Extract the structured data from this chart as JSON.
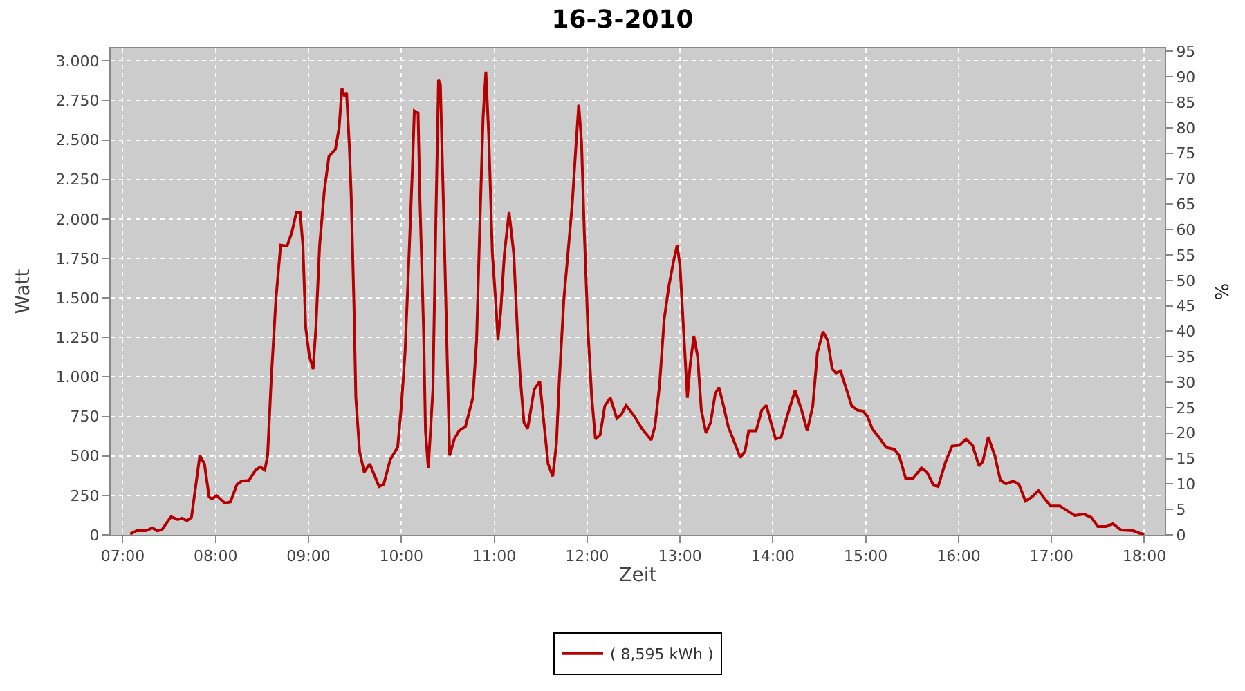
{
  "chart_data": {
    "type": "line",
    "title": "16-3-2010",
    "xlabel": "Zeit",
    "ylabel": "Watt",
    "y2label": "%",
    "xlim": [
      6.87,
      18.22
    ],
    "xticks": [
      {
        "value": 7,
        "label": "07:00"
      },
      {
        "value": 8,
        "label": "08:00"
      },
      {
        "value": 9,
        "label": "09:00"
      },
      {
        "value": 10,
        "label": "10:00"
      },
      {
        "value": 11,
        "label": "11:00"
      },
      {
        "value": 12,
        "label": "12:00"
      },
      {
        "value": 13,
        "label": "13:00"
      },
      {
        "value": 14,
        "label": "14:00"
      },
      {
        "value": 15,
        "label": "15:00"
      },
      {
        "value": 16,
        "label": "16:00"
      },
      {
        "value": 17,
        "label": "17:00"
      },
      {
        "value": 18,
        "label": "18:00"
      }
    ],
    "ylim": [
      0,
      3080
    ],
    "yticks": [
      0,
      250,
      500,
      750,
      {
        "value": 1000,
        "label": "1.000"
      },
      {
        "value": 1250,
        "label": "1.250"
      },
      {
        "value": 1500,
        "label": "1.500"
      },
      {
        "value": 1750,
        "label": "1.750"
      },
      {
        "value": 2000,
        "label": "2.000"
      },
      {
        "value": 2250,
        "label": "2.250"
      },
      {
        "value": 2500,
        "label": "2.500"
      },
      {
        "value": 2750,
        "label": "2.750"
      },
      {
        "value": 3000,
        "label": "3.000"
      }
    ],
    "y2lim": [
      0,
      95.6
    ],
    "y2ticks": [
      0,
      5,
      10,
      15,
      20,
      25,
      30,
      35,
      40,
      45,
      50,
      55,
      60,
      65,
      70,
      75,
      80,
      85,
      90,
      95
    ],
    "grid": true,
    "legend": "bottom",
    "marker": "none",
    "line_style": "solid",
    "series": [
      {
        "name": "( 8,595 kWh )",
        "color": "#b40000",
        "x": [
          7.08,
          7.15,
          7.25,
          7.32,
          7.37,
          7.42,
          7.52,
          7.59,
          7.64,
          7.69,
          7.74,
          7.77,
          7.83,
          7.88,
          7.93,
          7.96,
          8.01,
          8.1,
          8.16,
          8.23,
          8.28,
          8.36,
          8.43,
          8.48,
          8.53,
          8.56,
          8.6,
          8.65,
          8.7,
          8.77,
          8.82,
          8.87,
          8.91,
          8.94,
          8.97,
          9.01,
          9.05,
          9.08,
          9.12,
          9.17,
          9.22,
          9.29,
          9.33,
          9.36,
          9.39,
          9.41,
          9.44,
          9.46,
          9.49,
          9.51,
          9.55,
          9.6,
          9.66,
          9.76,
          9.81,
          9.88,
          9.96,
          10.0,
          10.04,
          10.08,
          10.12,
          10.14,
          10.18,
          10.2,
          10.24,
          10.26,
          10.29,
          10.34,
          10.37,
          10.4,
          10.42,
          10.46,
          10.49,
          10.52,
          10.57,
          10.62,
          10.69,
          10.77,
          10.81,
          10.84,
          10.88,
          10.91,
          10.94,
          10.98,
          11.02,
          11.04,
          11.07,
          11.11,
          11.16,
          11.21,
          11.25,
          11.28,
          11.32,
          11.36,
          11.43,
          11.49,
          11.53,
          11.58,
          11.63,
          11.67,
          11.7,
          11.75,
          11.79,
          11.84,
          11.88,
          11.91,
          11.94,
          11.97,
          12.01,
          12.05,
          12.09,
          12.14,
          12.19,
          12.25,
          12.32,
          12.37,
          12.42,
          12.51,
          12.59,
          12.69,
          12.73,
          12.78,
          12.83,
          12.88,
          12.93,
          12.97,
          13.0,
          13.04,
          13.08,
          13.11,
          13.15,
          13.19,
          13.23,
          13.28,
          13.33,
          13.38,
          13.42,
          13.47,
          13.52,
          13.59,
          13.65,
          13.7,
          13.74,
          13.82,
          13.88,
          13.93,
          13.98,
          14.03,
          14.09,
          14.16,
          14.24,
          14.31,
          14.37,
          14.43,
          14.48,
          14.54,
          14.59,
          14.64,
          14.68,
          14.73,
          14.8,
          14.85,
          14.91,
          14.97,
          15.02,
          15.07,
          15.14,
          15.22,
          15.31,
          15.36,
          15.43,
          15.51,
          15.6,
          15.66,
          15.73,
          15.78,
          15.86,
          15.93,
          16.01,
          16.08,
          16.15,
          16.22,
          16.26,
          16.32,
          16.39,
          16.45,
          16.51,
          16.59,
          16.65,
          16.72,
          16.79,
          16.86,
          16.93,
          16.99,
          17.09,
          17.18,
          17.25,
          17.35,
          17.43,
          17.5,
          17.59,
          17.66,
          17.75,
          17.88,
          17.95,
          18.0
        ],
        "values": [
          5,
          26,
          26,
          44,
          26,
          31,
          115,
          97,
          105,
          89,
          110,
          240,
          502,
          449,
          240,
          227,
          248,
          201,
          209,
          319,
          340,
          345,
          410,
          429,
          410,
          502,
          998,
          1495,
          1834,
          1829,
          1913,
          2043,
          2043,
          1834,
          1312,
          1129,
          1050,
          1312,
          1834,
          2174,
          2396,
          2441,
          2579,
          2827,
          2775,
          2801,
          2461,
          2148,
          1442,
          868,
          528,
          397,
          449,
          306,
          319,
          476,
          554,
          815,
          1155,
          1730,
          2331,
          2684,
          2671,
          2122,
          1286,
          658,
          423,
          920,
          1939,
          2880,
          2853,
          1939,
          1207,
          502,
          606,
          658,
          685,
          868,
          1233,
          1860,
          2644,
          2932,
          2540,
          1782,
          1442,
          1233,
          1416,
          1782,
          2043,
          1782,
          1286,
          998,
          711,
          672,
          920,
          972,
          737,
          449,
          371,
          580,
          972,
          1495,
          1756,
          2096,
          2461,
          2723,
          2488,
          1913,
          1286,
          868,
          606,
          632,
          815,
          868,
          737,
          763,
          820,
          750,
          672,
          601,
          685,
          946,
          1364,
          1573,
          1730,
          1834,
          1704,
          1286,
          868,
          1077,
          1259,
          1129,
          789,
          645,
          711,
          894,
          933,
          815,
          685,
          580,
          489,
          528,
          658,
          658,
          789,
          820,
          711,
          606,
          619,
          763,
          915,
          789,
          658,
          815,
          1155,
          1286,
          1233,
          1050,
          1024,
          1037,
          907,
          815,
          789,
          784,
          750,
          672,
          619,
          554,
          541,
          502,
          358,
          358,
          423,
          397,
          314,
          306,
          462,
          562,
          567,
          606,
          567,
          436,
          462,
          619,
          502,
          345,
          324,
          340,
          319,
          214,
          240,
          280,
          227,
          183,
          183,
          149,
          123,
          131,
          110,
          52,
          52,
          71,
          31,
          26,
          10,
          5
        ]
      }
    ]
  }
}
